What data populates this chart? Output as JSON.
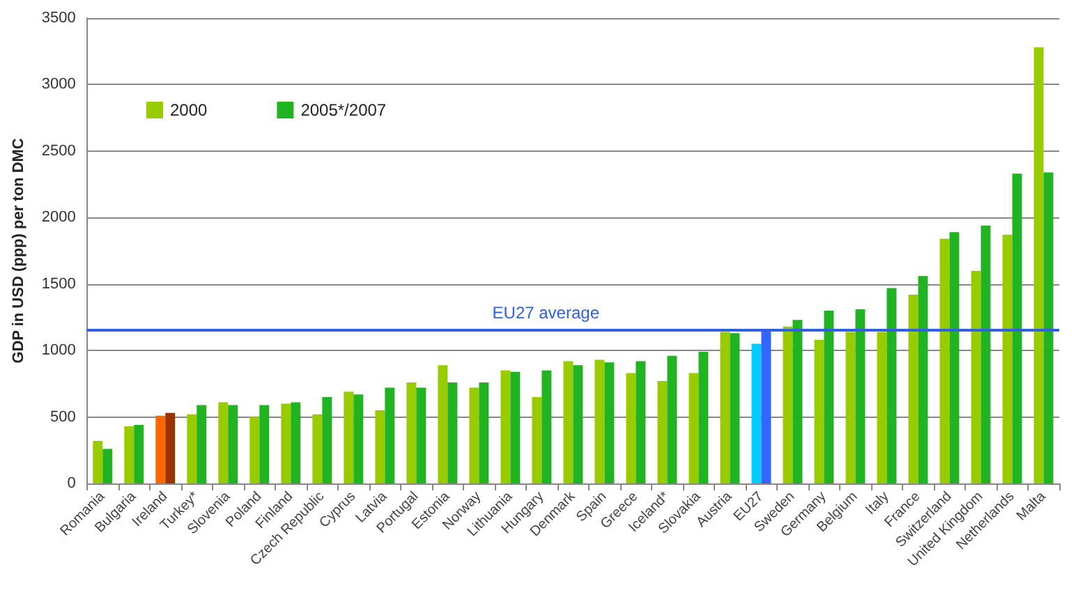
{
  "chart_data": {
    "type": "bar",
    "ylabel": "GDP in USD (ppp) per ton DMC",
    "categories": [
      "Romania",
      "Bulgaria",
      "Ireland",
      "Turkey*",
      "Slovenia",
      "Poland",
      "Finland",
      "Czech Republic",
      "Cyprus",
      "Latvia",
      "Portugal",
      "Estonia",
      "Norway",
      "Lithuania",
      "Hungary",
      "Denmark",
      "Spain",
      "Greece",
      "Iceland*",
      "Slovakia",
      "Austria",
      "EU27",
      "Sweden",
      "Germany",
      "Belgium",
      "Italy",
      "France",
      "Switzerland",
      "United Kingdom",
      "Netherlands",
      "Malta"
    ],
    "series": [
      {
        "name": "2000",
        "color": "#99cc00",
        "colors": [
          "#99cc00",
          "#99cc00",
          "#ff6600",
          "#99cc00",
          "#99cc00",
          "#99cc00",
          "#99cc00",
          "#99cc00",
          "#99cc00",
          "#99cc00",
          "#99cc00",
          "#99cc00",
          "#99cc00",
          "#99cc00",
          "#99cc00",
          "#99cc00",
          "#99cc00",
          "#99cc00",
          "#99cc00",
          "#99cc00",
          "#99cc00",
          "#00ccff",
          "#99cc00",
          "#99cc00",
          "#99cc00",
          "#99cc00",
          "#99cc00",
          "#99cc00",
          "#99cc00",
          "#99cc00",
          "#99cc00"
        ],
        "values": [
          320,
          430,
          510,
          520,
          610,
          500,
          600,
          520,
          690,
          550,
          760,
          890,
          720,
          850,
          650,
          920,
          930,
          830,
          770,
          830,
          1140,
          1050,
          1180,
          1080,
          1140,
          1140,
          1420,
          1840,
          1600,
          1870,
          3280
        ]
      },
      {
        "name": "2005*/2007",
        "color": "#22b322",
        "colors": [
          "#22b322",
          "#22b322",
          "#993300",
          "#22b322",
          "#22b322",
          "#22b322",
          "#22b322",
          "#22b322",
          "#22b322",
          "#22b322",
          "#22b322",
          "#22b322",
          "#22b322",
          "#22b322",
          "#22b322",
          "#22b322",
          "#22b322",
          "#22b322",
          "#22b322",
          "#22b322",
          "#22b322",
          "#3366ff",
          "#22b322",
          "#22b322",
          "#22b322",
          "#22b322",
          "#22b322",
          "#22b322",
          "#22b322",
          "#22b322",
          "#22b322"
        ],
        "values": [
          260,
          440,
          530,
          590,
          590,
          590,
          610,
          650,
          670,
          720,
          720,
          760,
          760,
          840,
          850,
          890,
          910,
          920,
          960,
          990,
          1130,
          1150,
          1230,
          1300,
          1310,
          1470,
          1560,
          1890,
          1940,
          2330,
          2340
        ]
      }
    ],
    "ylim": [
      0,
      3500
    ],
    "yticks": [
      0,
      500,
      1000,
      1500,
      2000,
      2500,
      3000,
      3500
    ],
    "grid": "y",
    "legend": "top left",
    "ref_lines": [
      {
        "axis": "y",
        "value": 1160,
        "label": "EU27 average",
        "color": "#3060e0"
      }
    ]
  }
}
